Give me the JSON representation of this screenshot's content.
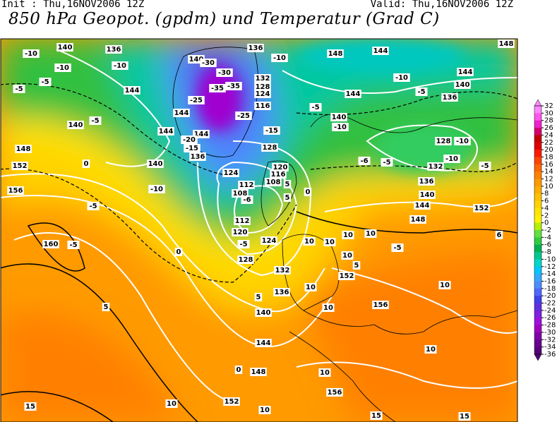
{
  "header": {
    "init": "Init : Thu,16NOV2006 12Z",
    "valid": "Valid: Thu,16NOV2006 12Z",
    "title": "850 hPa Geopot. (gpdm) und Temperatur (Grad C)"
  },
  "colorbar": {
    "labels": [
      "32",
      "30",
      "28",
      "26",
      "24",
      "22",
      "20",
      "18",
      "16",
      "14",
      "12",
      "10",
      "8",
      "6",
      "4",
      "2",
      "0",
      "-2",
      "-4",
      "-6",
      "-8",
      "-10",
      "-12",
      "-14",
      "-16",
      "-18",
      "-20",
      "-22",
      "-24",
      "-26",
      "-28",
      "-30",
      "-32",
      "-34",
      "-36"
    ],
    "colors": [
      "#ff88ff",
      "#ff55ee",
      "#ee22cc",
      "#d4006e",
      "#c40000",
      "#e00000",
      "#ff1a00",
      "#ff4400",
      "#ff6600",
      "#ff8000",
      "#ff9900",
      "#ffad00",
      "#ffc000",
      "#ffd400",
      "#ffe600",
      "#fff200",
      "#b4f000",
      "#60e040",
      "#30cc40",
      "#00b050",
      "#00c890",
      "#00d8c8",
      "#00c8ff",
      "#33aaff",
      "#4c8cff",
      "#5066ff",
      "#4040ee",
      "#6030e0",
      "#8020e0",
      "#a010e0",
      "#a000c0",
      "#8000a8",
      "#6a0090",
      "#55007a"
    ]
  },
  "map": {
    "geopotential_labels": [
      "140",
      "136",
      "140",
      "136",
      "148",
      "144",
      "148",
      "144",
      "140",
      "136",
      "144",
      "144",
      "132",
      "128",
      "124",
      "116",
      "140",
      "140",
      "144",
      "144",
      "144",
      "136",
      "148",
      "152",
      "156",
      "140",
      "128",
      "128",
      "132",
      "136",
      "124",
      "120",
      "116",
      "108",
      "108",
      "112",
      "112",
      "120",
      "124",
      "128",
      "132",
      "136",
      "140",
      "144",
      "148",
      "152",
      "156",
      "156",
      "152",
      "148",
      "144",
      "140",
      "152",
      "160"
    ],
    "temperature_labels": [
      "-10",
      "-10",
      "-10",
      "-5",
      "-5",
      "-10",
      "-10",
      "-5",
      "-5",
      "-30",
      "-30",
      "-35",
      "-35",
      "-25",
      "-25",
      "-15",
      "-5",
      "-10",
      "-10",
      "-6",
      "-5",
      "-10",
      "-5",
      "-10",
      "-5",
      "0",
      "-15",
      "-20",
      "0",
      "-5",
      "-5",
      "-6",
      "5",
      "0",
      "5",
      "10",
      "10",
      "10",
      "10",
      "10",
      "10",
      "10",
      "5",
      "10",
      "10",
      "10",
      "10",
      "15",
      "15",
      "15",
      "10",
      "0",
      "5",
      "5",
      "-5",
      "6"
    ]
  }
}
